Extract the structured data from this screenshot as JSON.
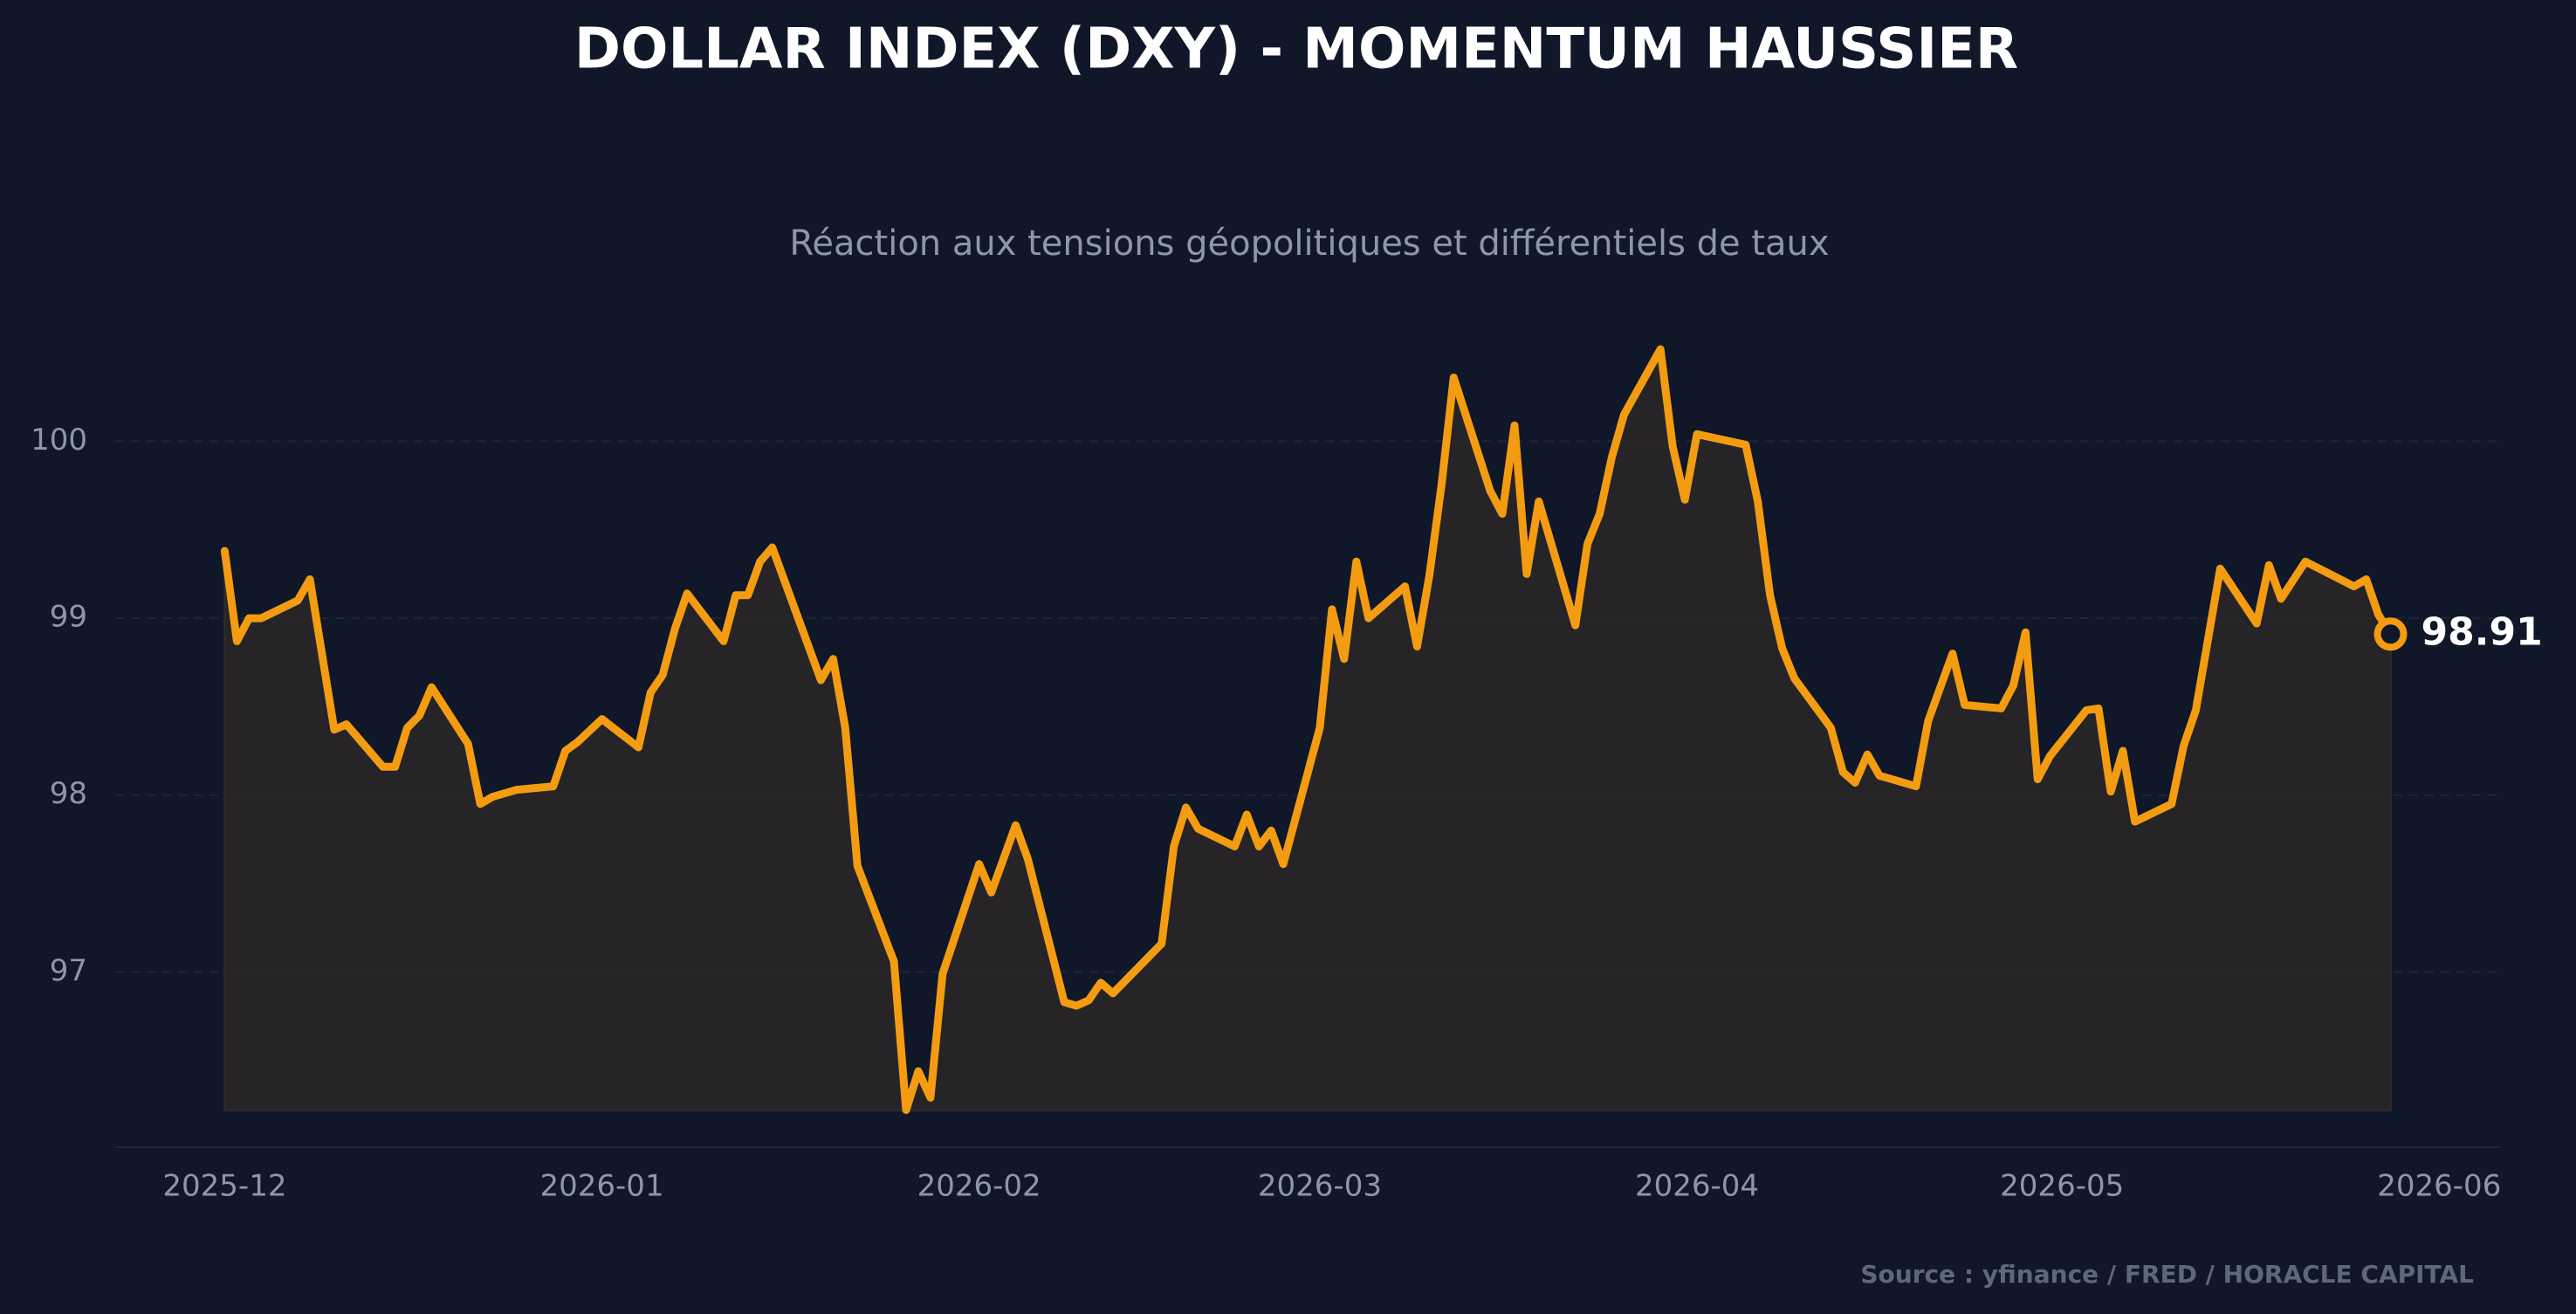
{
  "chart_data": {
    "type": "line",
    "title": "DOLLAR INDEX (DXY) - MOMENTUM HAUSSIER",
    "subtitle": "Réaction aux tensions géopolitiques et différentiels de taux",
    "source": "Source : yfinance / FRED / HORACLE CAPITAL",
    "x": [
      "2025-12-01",
      "2025-12-02",
      "2025-12-03",
      "2025-12-04",
      "2025-12-07",
      "2025-12-08",
      "2025-12-10",
      "2025-12-11",
      "2025-12-14",
      "2025-12-15",
      "2025-12-16",
      "2025-12-17",
      "2025-12-18",
      "2025-12-21",
      "2025-12-22",
      "2025-12-23",
      "2025-12-25",
      "2025-12-28",
      "2025-12-29",
      "2025-12-30",
      "2026-01-01",
      "2026-01-04",
      "2026-01-05",
      "2026-01-06",
      "2026-01-07",
      "2026-01-08",
      "2026-01-11",
      "2026-01-12",
      "2026-01-13",
      "2026-01-14",
      "2026-01-15",
      "2026-01-19",
      "2026-01-20",
      "2026-01-21",
      "2026-01-22",
      "2026-01-25",
      "2026-01-26",
      "2026-01-27",
      "2026-01-28",
      "2026-01-29",
      "2026-02-01",
      "2026-02-02",
      "2026-02-04",
      "2026-02-05",
      "2026-02-08",
      "2026-02-09",
      "2026-02-10",
      "2026-02-11",
      "2026-02-12",
      "2026-02-16",
      "2026-02-17",
      "2026-02-18",
      "2026-02-19",
      "2026-02-22",
      "2026-02-23",
      "2026-02-24",
      "2026-02-25",
      "2026-02-26",
      "2026-03-01",
      "2026-03-02",
      "2026-03-03",
      "2026-03-04",
      "2026-03-05",
      "2026-03-08",
      "2026-03-09",
      "2026-03-10",
      "2026-03-11",
      "2026-03-12",
      "2026-03-15",
      "2026-03-16",
      "2026-03-17",
      "2026-03-18",
      "2026-03-19",
      "2026-03-22",
      "2026-03-23",
      "2026-03-24",
      "2026-03-25",
      "2026-03-26",
      "2026-03-29",
      "2026-03-30",
      "2026-03-31",
      "2026-04-01",
      "2026-04-05",
      "2026-04-06",
      "2026-04-07",
      "2026-04-08",
      "2026-04-09",
      "2026-04-12",
      "2026-04-13",
      "2026-04-14",
      "2026-04-15",
      "2026-04-16",
      "2026-04-19",
      "2026-04-20",
      "2026-04-22",
      "2026-04-23",
      "2026-04-26",
      "2026-04-27",
      "2026-04-28",
      "2026-04-29",
      "2026-04-30",
      "2026-05-03",
      "2026-05-04",
      "2026-05-05",
      "2026-05-06",
      "2026-05-07",
      "2026-05-10",
      "2026-05-11",
      "2026-05-12",
      "2026-05-14",
      "2026-05-17",
      "2026-05-18",
      "2026-05-19",
      "2026-05-21",
      "2026-05-25",
      "2026-05-26",
      "2026-05-27",
      "2026-05-28"
    ],
    "series": [
      {
        "name": "DXY",
        "color": "#f39c12",
        "values": [
          99.38,
          98.87,
          99.0,
          99.0,
          99.1,
          99.22,
          98.37,
          98.4,
          98.16,
          98.16,
          98.38,
          98.45,
          98.61,
          98.29,
          97.95,
          97.99,
          98.03,
          98.05,
          98.25,
          98.3,
          98.43,
          98.27,
          98.58,
          98.68,
          98.94,
          99.14,
          98.87,
          99.13,
          99.13,
          99.32,
          99.4,
          98.65,
          98.77,
          98.38,
          97.6,
          97.06,
          96.22,
          96.44,
          96.29,
          96.99,
          97.61,
          97.45,
          97.83,
          97.64,
          96.83,
          96.81,
          96.84,
          96.94,
          96.88,
          97.16,
          97.71,
          97.93,
          97.81,
          97.71,
          97.89,
          97.71,
          97.8,
          97.61,
          98.38,
          99.05,
          98.77,
          99.32,
          99.0,
          99.18,
          98.84,
          99.24,
          99.75,
          100.36,
          99.72,
          99.59,
          100.09,
          99.25,
          99.66,
          98.96,
          99.42,
          99.59,
          99.91,
          100.15,
          100.52,
          99.97,
          99.67,
          100.04,
          99.98,
          99.66,
          99.13,
          98.83,
          98.66,
          98.38,
          98.13,
          98.07,
          98.23,
          98.11,
          98.05,
          98.42,
          98.8,
          98.51,
          98.49,
          98.62,
          98.92,
          98.09,
          98.22,
          98.48,
          98.49,
          98.02,
          98.25,
          97.85,
          97.95,
          98.28,
          98.48,
          99.28,
          98.97,
          99.3,
          99.11,
          99.32,
          99.18,
          99.22,
          99.02,
          98.91
        ]
      }
    ],
    "xlim": [
      "2025-11-22",
      "2026-06-06"
    ],
    "xticks": [
      {
        "value": "2025-12-01",
        "label": "2025-12"
      },
      {
        "value": "2026-01-01",
        "label": "2026-01"
      },
      {
        "value": "2026-02-01",
        "label": "2026-02"
      },
      {
        "value": "2026-03-01",
        "label": "2026-03"
      },
      {
        "value": "2026-04-01",
        "label": "2026-04"
      },
      {
        "value": "2026-05-01",
        "label": "2026-05"
      },
      {
        "value": "2026-06-01",
        "label": "2026-06"
      }
    ],
    "ylim": [
      96.01,
      100.9
    ],
    "yticks": [
      97,
      98,
      99,
      100
    ],
    "grid": true
  }
}
